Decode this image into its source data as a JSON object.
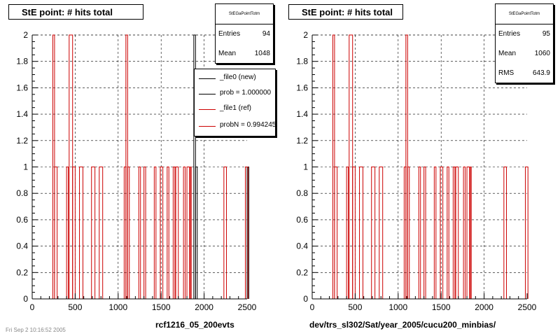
{
  "panels": [
    {
      "title": "StE point: # hits total",
      "stats": {
        "name": "StEGaPointTotm",
        "rows": [
          {
            "label": "Entries",
            "value": "94"
          },
          {
            "label": "Mean",
            "value": "1048"
          }
        ]
      },
      "legend": [
        {
          "label": "_file0 (new)",
          "color": "#000000"
        },
        {
          "label": "prob = 1.000000",
          "color": "#000000"
        },
        {
          "label": "_file1 (ref)",
          "color": "#cc0000"
        },
        {
          "label": "probN = 0.994245",
          "color": "#cc0000"
        }
      ],
      "xtitle": "rcf1216_05_200evts"
    },
    {
      "title": "StE point: # hits total",
      "stats": {
        "name": "StEGaPointTotm",
        "rows": [
          {
            "label": "Entries",
            "value": "95"
          },
          {
            "label": "Mean",
            "value": "1060"
          },
          {
            "label": "RMS",
            "value": "643.9"
          }
        ]
      },
      "xtitle": "dev/trs_sl302/Sat/year_2005/cucu200_minbias/"
    }
  ],
  "footer": "Fri Sep 2 10:16:52 2005",
  "chart_data": [
    {
      "type": "histogram",
      "title": "StE point: # hits total",
      "xlabel": "rcf1216_05_200evts",
      "ylabel": "",
      "xlim": [
        0,
        2500
      ],
      "ylim": [
        0,
        2
      ],
      "xticks": [
        0,
        500,
        1000,
        1500,
        2000,
        2500
      ],
      "yticks": [
        0,
        0.2,
        0.4,
        0.6,
        0.8,
        1,
        1.2,
        1.4,
        1.6,
        1.8,
        2
      ],
      "grid": true,
      "series": [
        {
          "name": "_file0 (new)",
          "color": "#000000",
          "bins": [
            [
              1880,
              1900,
              2
            ],
            [
              1900,
              1920,
              1
            ],
            [
              2500,
              2520,
              1
            ]
          ]
        },
        {
          "name": "_file1 (ref)",
          "color": "#cc0000",
          "bins": [
            [
              240,
              260,
              2
            ],
            [
              260,
              290,
              1
            ],
            [
              400,
              420,
              1
            ],
            [
              430,
              470,
              2
            ],
            [
              470,
              500,
              1
            ],
            [
              550,
              590,
              1
            ],
            [
              690,
              730,
              1
            ],
            [
              780,
              820,
              1
            ],
            [
              1070,
              1090,
              1
            ],
            [
              1090,
              1110,
              2
            ],
            [
              1110,
              1130,
              1
            ],
            [
              1240,
              1260,
              1
            ],
            [
              1300,
              1320,
              1
            ],
            [
              1420,
              1440,
              1
            ],
            [
              1490,
              1520,
              1
            ],
            [
              1570,
              1590,
              1
            ],
            [
              1640,
              1660,
              1
            ],
            [
              1670,
              1700,
              1
            ],
            [
              1760,
              1780,
              1
            ],
            [
              1800,
              1830,
              1
            ],
            [
              1840,
              1850,
              1
            ],
            [
              2230,
              2260,
              1
            ],
            [
              2480,
              2510,
              1
            ]
          ]
        }
      ]
    },
    {
      "type": "histogram",
      "title": "StE point: # hits total",
      "xlabel": "dev/trs_sl302/Sat/year_2005/cucu200_minbias/",
      "ylabel": "",
      "xlim": [
        0,
        2500
      ],
      "ylim": [
        0,
        2
      ],
      "xticks": [
        0,
        500,
        1000,
        1500,
        2000,
        2500
      ],
      "yticks": [
        0,
        0.2,
        0.4,
        0.6,
        0.8,
        1,
        1.2,
        1.4,
        1.6,
        1.8,
        2
      ],
      "grid": true,
      "series": [
        {
          "name": "",
          "color": "#cc0000",
          "bins": [
            [
              240,
              260,
              2
            ],
            [
              260,
              290,
              1
            ],
            [
              400,
              420,
              1
            ],
            [
              430,
              470,
              2
            ],
            [
              470,
              500,
              1
            ],
            [
              550,
              590,
              1
            ],
            [
              690,
              730,
              1
            ],
            [
              780,
              820,
              1
            ],
            [
              1070,
              1090,
              1
            ],
            [
              1090,
              1110,
              2
            ],
            [
              1110,
              1130,
              1
            ],
            [
              1240,
              1260,
              1
            ],
            [
              1300,
              1320,
              1
            ],
            [
              1420,
              1440,
              1
            ],
            [
              1490,
              1520,
              1
            ],
            [
              1570,
              1590,
              1
            ],
            [
              1640,
              1660,
              1
            ],
            [
              1670,
              1700,
              1
            ],
            [
              1760,
              1780,
              1
            ],
            [
              1800,
              1830,
              1
            ],
            [
              1840,
              1850,
              1
            ],
            [
              2230,
              2260,
              1
            ],
            [
              2480,
              2510,
              1
            ]
          ]
        }
      ]
    }
  ]
}
